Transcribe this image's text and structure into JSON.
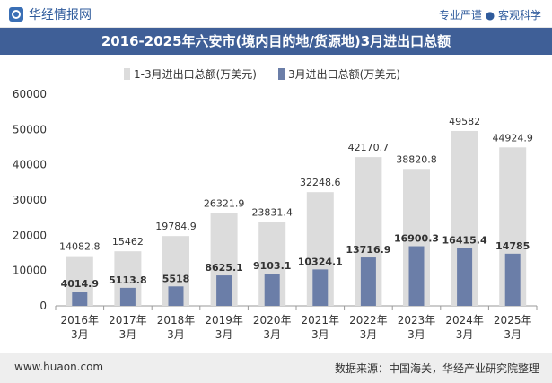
{
  "header": {
    "brand": "华经情报网",
    "slogan": "专业严谨 ● 客观科学"
  },
  "footer": {
    "url": "www.huaon.com",
    "source": "数据来源：中国海关，华经产业研究院整理"
  },
  "colors": {
    "title_bg": "#3f5f97",
    "series_total": "#dcdcdc",
    "series_march": "#6b7ea8"
  },
  "chart_data": {
    "type": "bar",
    "title": "2016-2025年六安市(境内目的地/货源地)3月进出口总额",
    "categories": [
      [
        "2016年",
        "3月"
      ],
      [
        "2017年",
        "3月"
      ],
      [
        "2018年",
        "3月"
      ],
      [
        "2019年",
        "3月"
      ],
      [
        "2020年",
        "3月"
      ],
      [
        "2021年",
        "3月"
      ],
      [
        "2022年",
        "3月"
      ],
      [
        "2023年",
        "3月"
      ],
      [
        "2024年",
        "3月"
      ],
      [
        "2025年",
        "3月"
      ]
    ],
    "series": [
      {
        "name": "1-3月进出口总额(万美元)",
        "values": [
          14082.8,
          15462,
          19784.9,
          26321.9,
          23831.4,
          32248.6,
          42170.7,
          38820.8,
          49582,
          44924.9
        ],
        "labels": [
          "14082.8",
          "15462",
          "19784.9",
          "26321.9",
          "23831.4",
          "32248.6",
          "42170.7",
          "38820.8",
          "49582",
          "44924.9"
        ]
      },
      {
        "name": "3月进出口总额(万美元)",
        "values": [
          4014.9,
          5113.8,
          5518,
          8625.1,
          9103.1,
          10324.1,
          13716.9,
          16900.3,
          16415.4,
          14785
        ],
        "labels": [
          "4014.9",
          "5113.8",
          "5518",
          "8625.1",
          "9103.1",
          "10324.1",
          "13716.9",
          "16900.3",
          "16415.4",
          "14785"
        ]
      }
    ],
    "ylim": [
      0,
      60000
    ],
    "yticks": [
      "0",
      "10000",
      "20000",
      "30000",
      "40000",
      "50000",
      "60000"
    ],
    "yticks_values": [
      0,
      10000,
      20000,
      30000,
      40000,
      50000,
      60000
    ],
    "legend": "top-center",
    "grid": false
  }
}
